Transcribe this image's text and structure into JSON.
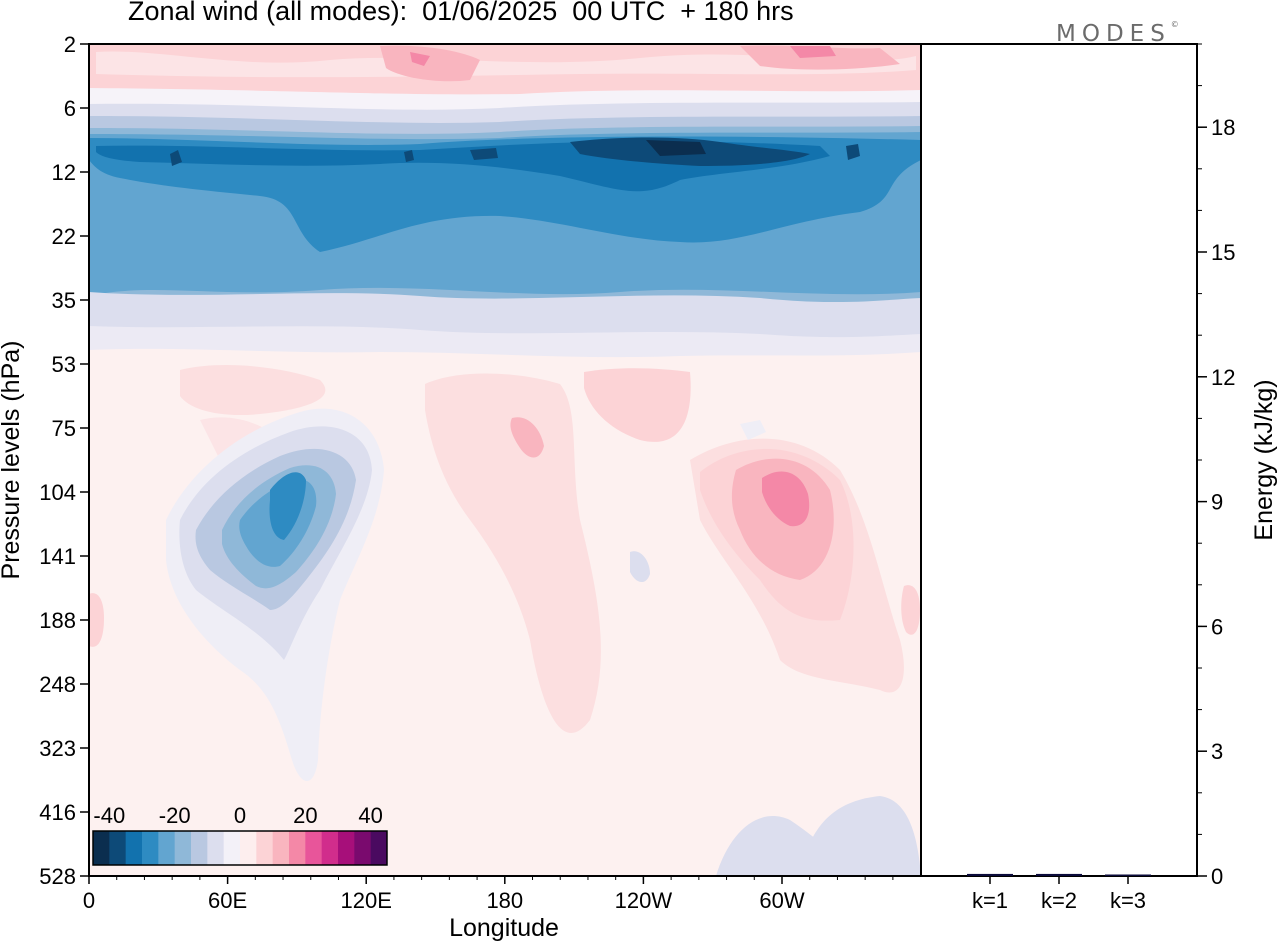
{
  "chart_data": [
    {
      "type": "heatmap",
      "title": "Zonal wind (all modes):  01/06/2025  00 UTC  + 180 hrs",
      "xlabel": "Longitude",
      "ylabel": "Pressure levels (hPa)",
      "x_ticks": [
        "0",
        "60E",
        "120E",
        "180",
        "120W",
        "60W"
      ],
      "y_ticks": [
        "2",
        "6",
        "12",
        "22",
        "35",
        "53",
        "75",
        "104",
        "141",
        "188",
        "248",
        "323",
        "416",
        "528"
      ],
      "colorbar": {
        "ticks": [
          "-40",
          "-20",
          "0",
          "20",
          "40"
        ],
        "range": [
          -45,
          45
        ],
        "colors": [
          "#0b2e4f",
          "#0d4a78",
          "#1272ae",
          "#2e8bc2",
          "#62a5d0",
          "#8fb8d8",
          "#b9c8e1",
          "#dcdeee",
          "#f3f1f8",
          "#fdeeee",
          "#fcd3d6",
          "#f9b5bf",
          "#f488a7",
          "#e8559a",
          "#d12d8c",
          "#a70f7a",
          "#7a0a6e",
          "#4a0a60"
        ]
      },
      "values_note": "",
      "features": [
        {
          "x": 45,
          "y": 3,
          "v": 8
        }
      ]
    },
    {
      "type": "bar",
      "categories": [
        "k=1",
        "k=2",
        "k=3"
      ],
      "values": [
        0.05,
        0.05,
        0.02
      ],
      "ylabel": "Energy (kJ/kg)",
      "y_ticks": [
        "0",
        "3",
        "6",
        "9",
        "12",
        "15",
        "18"
      ],
      "ylim": [
        0,
        20
      ]
    }
  ],
  "brand": {
    "text": "MODES",
    "mark": "©"
  }
}
